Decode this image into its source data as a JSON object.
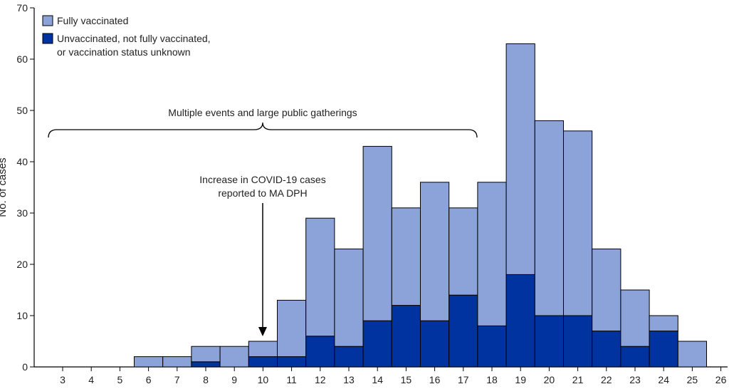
{
  "chart_data": {
    "type": "bar",
    "stacked": true,
    "ylabel": "No. of cases",
    "ylim": [
      0,
      70
    ],
    "yticks": [
      0,
      10,
      20,
      30,
      40,
      50,
      60,
      70
    ],
    "xticks": [
      "3",
      "4",
      "5",
      "6",
      "7",
      "8",
      "9",
      "10",
      "11",
      "12",
      "13",
      "14",
      "15",
      "16",
      "17",
      "18",
      "19",
      "20",
      "21",
      "22",
      "23",
      "24",
      "25",
      "26"
    ],
    "categories": [
      "5.5",
      "6.5",
      "7.5",
      "8.5",
      "9.5",
      "10.5",
      "11.5",
      "12.5",
      "13.5",
      "14.5",
      "15.5",
      "16.5",
      "17.5",
      "18.5",
      "19.5",
      "20.5",
      "21.5",
      "22.5",
      "23.5",
      "24.5",
      "25"
    ],
    "series": [
      {
        "name": "Unvaccinated, not fully vaccinated, or vaccination status unknown",
        "color": "#0033a0",
        "values": [
          0,
          0,
          1,
          0,
          2,
          2,
          6,
          4,
          9,
          12,
          9,
          14,
          8,
          18,
          10,
          10,
          7,
          4,
          7,
          0,
          0
        ]
      },
      {
        "name": "Fully vaccinated",
        "color": "#8ba3d8",
        "values": [
          2,
          2,
          3,
          4,
          3,
          11,
          23,
          19,
          34,
          19,
          27,
          17,
          28,
          45,
          38,
          36,
          16,
          11,
          3,
          5,
          0
        ]
      }
    ],
    "totals": [
      2,
      2,
      4,
      4,
      5,
      13,
      29,
      23,
      43,
      31,
      36,
      31,
      36,
      63,
      48,
      46,
      23,
      15,
      10,
      5,
      0
    ],
    "legend": {
      "position": "top-left",
      "entries": [
        {
          "lines": [
            "Fully vaccinated"
          ],
          "color": "#8ba3d8"
        },
        {
          "lines": [
            "Unvaccinated, not fully vaccinated,",
            "or vaccination status unknown"
          ],
          "color": "#0033a0"
        }
      ]
    },
    "annotations": {
      "bracket_label": "Multiple events and large public gatherings",
      "arrow_label": [
        "Increase in COVID-19 cases",
        "reported to MA DPH"
      ]
    }
  }
}
